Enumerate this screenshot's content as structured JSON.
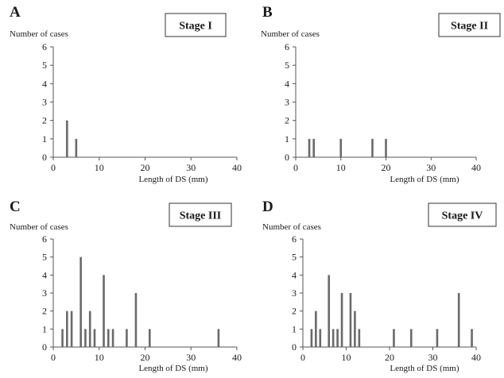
{
  "chart_data": [
    {
      "type": "bar",
      "panel": "A",
      "stage": "Stage I",
      "ylabel": "Number of cases",
      "xlabel": "Length of DS (mm)",
      "xlim": [
        0,
        40
      ],
      "ylim": [
        0,
        6
      ],
      "xticks": [
        0,
        10,
        20,
        30,
        40
      ],
      "yticks": [
        0,
        1,
        2,
        3,
        4,
        5,
        6
      ],
      "x": [
        3,
        5
      ],
      "values": [
        2,
        1
      ],
      "grid": false,
      "bar_color": "#6a6a6a"
    },
    {
      "type": "bar",
      "panel": "B",
      "stage": "Stage II",
      "ylabel": "Number of cases",
      "xlabel": "Length of DS (mm)",
      "xlim": [
        0,
        40
      ],
      "ylim": [
        0,
        6
      ],
      "xticks": [
        0,
        10,
        20,
        30,
        40
      ],
      "yticks": [
        0,
        1,
        2,
        3,
        4,
        5,
        6
      ],
      "x": [
        3,
        4,
        10,
        17,
        20
      ],
      "values": [
        1,
        1,
        1,
        1,
        1
      ],
      "grid": false,
      "bar_color": "#6a6a6a"
    },
    {
      "type": "bar",
      "panel": "C",
      "stage": "Stage III",
      "ylabel": "Number of cases",
      "xlabel": "Length of DS (mm)",
      "xlim": [
        0,
        40
      ],
      "ylim": [
        0,
        6
      ],
      "xticks": [
        0,
        10,
        20,
        30,
        40
      ],
      "yticks": [
        0,
        1,
        2,
        3,
        4,
        5,
        6
      ],
      "x": [
        2,
        3,
        4,
        6,
        7,
        8,
        9,
        11,
        12,
        13,
        16,
        18,
        21,
        36
      ],
      "values": [
        1,
        2,
        2,
        5,
        1,
        2,
        1,
        4,
        1,
        1,
        1,
        3,
        1,
        1
      ],
      "grid": false,
      "bar_color": "#6a6a6a"
    },
    {
      "type": "bar",
      "panel": "D",
      "stage": "Stage IV",
      "ylabel": "Number of cases",
      "xlabel": "Length of DS (mm)",
      "xlim": [
        0,
        40
      ],
      "ylim": [
        0,
        6
      ],
      "xticks": [
        0,
        10,
        20,
        30,
        40
      ],
      "yticks": [
        0,
        1,
        2,
        3,
        4,
        5,
        6
      ],
      "x": [
        2,
        3,
        4,
        6,
        7,
        8,
        9,
        11,
        12,
        13,
        21,
        25,
        31,
        36,
        39
      ],
      "values": [
        1,
        2,
        1,
        4,
        1,
        1,
        3,
        3,
        2,
        1,
        1,
        1,
        1,
        3,
        1
      ],
      "grid": false,
      "bar_color": "#6a6a6a"
    }
  ]
}
